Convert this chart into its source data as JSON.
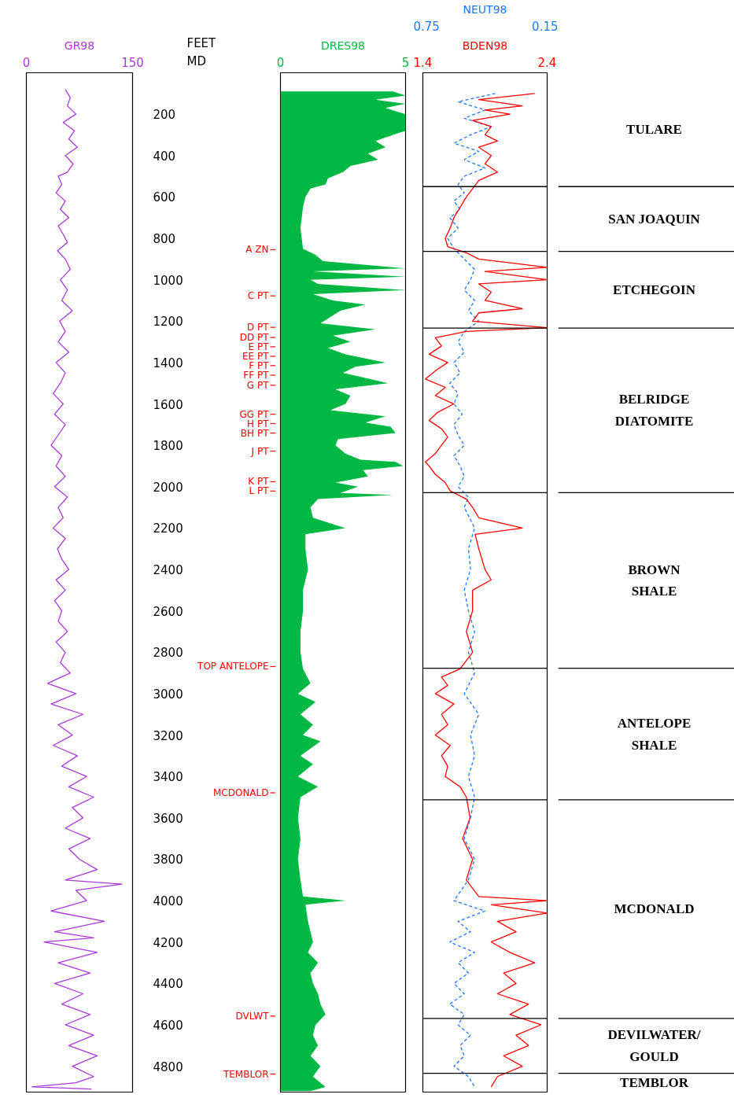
{
  "chart_data": [
    {
      "type": "line",
      "xlabel": "GR98",
      "ylabel": "FEET\nMD",
      "xlim": [
        0,
        150
      ],
      "xticks": [
        0,
        150
      ],
      "ylim": [
        4925,
        0
      ],
      "yticks": [
        200,
        400,
        600,
        800,
        1000,
        1200,
        1400,
        1600,
        1800,
        2000,
        2200,
        2400,
        2600,
        2800,
        3000,
        3200,
        3400,
        3600,
        3800,
        4000,
        4200,
        4400,
        4600,
        4800
      ],
      "series": [
        {
          "color": "#a83ad6",
          "x": [
            55,
            62,
            58,
            70,
            52,
            68,
            60,
            72,
            55,
            66,
            58,
            45,
            50,
            42,
            55,
            48,
            60,
            45,
            52,
            58,
            44,
            55,
            62,
            48,
            58,
            50,
            65,
            47,
            55,
            45,
            60,
            42,
            55,
            48,
            38,
            52,
            40,
            55,
            45,
            35,
            50,
            42,
            55,
            40,
            58,
            45,
            52,
            38,
            55,
            44,
            50,
            60,
            42,
            55,
            40,
            50,
            45,
            58,
            42,
            55,
            48,
            62,
            30,
            70,
            35,
            80,
            45,
            65,
            38,
            72,
            50,
            85,
            60,
            95,
            65,
            80,
            55,
            90,
            60,
            75,
            100,
            55,
            135,
            70,
            85,
            35,
            110,
            40,
            95,
            25,
            100,
            45,
            90,
            40,
            80,
            50,
            90,
            55,
            95,
            60,
            100,
            65,
            95,
            70,
            8,
            92
          ],
          "values": [
            80,
            120,
            160,
            200,
            240,
            280,
            320,
            360,
            400,
            440,
            480,
            500,
            540,
            580,
            620,
            660,
            700,
            740,
            780,
            820,
            860,
            900,
            950,
            1000,
            1050,
            1100,
            1150,
            1200,
            1250,
            1300,
            1350,
            1400,
            1450,
            1500,
            1550,
            1600,
            1650,
            1700,
            1750,
            1800,
            1850,
            1900,
            1950,
            2000,
            2050,
            2100,
            2150,
            2200,
            2250,
            2300,
            2350,
            2400,
            2450,
            2500,
            2550,
            2600,
            2650,
            2700,
            2750,
            2800,
            2850,
            2900,
            2950,
            3000,
            3050,
            3100,
            3150,
            3200,
            3250,
            3300,
            3350,
            3400,
            3450,
            3500,
            3550,
            3600,
            3650,
            3700,
            3750,
            3800,
            3850,
            3900,
            3920,
            3950,
            4000,
            4050,
            4100,
            4150,
            4180,
            4200,
            4250,
            4300,
            4350,
            4400,
            4450,
            4500,
            4550,
            4600,
            4650,
            4700,
            4750,
            4800,
            4850,
            4880,
            4900,
            4910
          ]
        }
      ]
    },
    {
      "type": "area",
      "orientation": "horizontal",
      "xlabel": "DRES98",
      "xlim": [
        0,
        5
      ],
      "xticks": [
        0,
        5
      ],
      "ylim": [
        4925,
        0
      ],
      "tick_labels": "x",
      "series": [
        {
          "color": "#00b843",
          "values": [
            4.5,
            5,
            3.8,
            5,
            4.2,
            5,
            5,
            5,
            4.5,
            3.8,
            4.2,
            3.5,
            3.9,
            2.8,
            2.5,
            1.9,
            1.8,
            1.2,
            1.0,
            0.9,
            0.85,
            0.8,
            0.85,
            0.9,
            1.4,
            1.7,
            5,
            1.3,
            5,
            1.2,
            1.5,
            5,
            1.3,
            2.1,
            3.4,
            2.4,
            2.0,
            1.6,
            3.8,
            2.1,
            2.8,
            1.9,
            2.6,
            4.2,
            3.0,
            2.5,
            3.6,
            4.3,
            2.2,
            2.8,
            2.6,
            2.0,
            4.2,
            3.4,
            4.4,
            4.6,
            2.3,
            2.2,
            2.6,
            3.2,
            4.6,
            4.9,
            3.3,
            3.5,
            2.2,
            3.1,
            2.4,
            4.5,
            1.5,
            1.2,
            1.3,
            2.6,
            1.0,
            1.0,
            1.1,
            0.9,
            0.9,
            0.8,
            0.8,
            0.9,
            1.2,
            0.7,
            1.4,
            0.8,
            1.3,
            0.9,
            1.6,
            0.8,
            1.3,
            0.7,
            1.5,
            0.8,
            0.7,
            0.8,
            0.7,
            0.8,
            0.9,
            2.6,
            1.0,
            1.1,
            1.3,
            1.1,
            1.5,
            1.2,
            1.3,
            1.5,
            1.6,
            1.8,
            1.4,
            1.3,
            1.5,
            1.2,
            1.6,
            1.3,
            1.8,
            1.2
          ],
          "x": [
            90,
            110,
            130,
            150,
            170,
            200,
            240,
            280,
            300,
            330,
            360,
            390,
            420,
            450,
            480,
            510,
            540,
            560,
            600,
            650,
            700,
            750,
            800,
            850,
            880,
            910,
            945,
            960,
            985,
            1000,
            1020,
            1050,
            1070,
            1100,
            1120,
            1150,
            1180,
            1210,
            1240,
            1270,
            1300,
            1330,
            1360,
            1400,
            1420,
            1450,
            1480,
            1500,
            1530,
            1560,
            1600,
            1630,
            1660,
            1690,
            1710,
            1740,
            1770,
            1800,
            1840,
            1870,
            1880,
            1900,
            1920,
            1950,
            1980,
            2000,
            2030,
            2040,
            2060,
            2100,
            2150,
            2200,
            2230,
            2300,
            2400,
            2500,
            2600,
            2700,
            2800,
            2880,
            2950,
            3000,
            3040,
            3100,
            3150,
            3200,
            3230,
            3300,
            3340,
            3400,
            3450,
            3500,
            3600,
            3700,
            3800,
            3900,
            3980,
            4000,
            4020,
            4100,
            4200,
            4250,
            4300,
            4350,
            4400,
            4450,
            4500,
            4550,
            4600,
            4650,
            4700,
            4750,
            4800,
            4850,
            4900,
            4920
          ]
        }
      ],
      "ref_lines": [
        {
          "axis": "y",
          "value": 855,
          "label": "A ZN",
          "color": "#ff0000"
        },
        {
          "axis": "y",
          "value": 1078,
          "label": "C PT",
          "color": "#ff0000"
        },
        {
          "axis": "y",
          "value": 1230,
          "label": "D PT",
          "color": "#ff0000"
        },
        {
          "axis": "y",
          "value": 1279,
          "label": "DD PT",
          "color": "#ff0000"
        },
        {
          "axis": "y",
          "value": 1324,
          "label": "E PT",
          "color": "#ff0000"
        },
        {
          "axis": "y",
          "value": 1370,
          "label": "EE PT",
          "color": "#ff0000"
        },
        {
          "axis": "y",
          "value": 1415,
          "label": "F PT",
          "color": "#ff0000"
        },
        {
          "axis": "y",
          "value": 1461,
          "label": "FF PT",
          "color": "#ff0000"
        },
        {
          "axis": "y",
          "value": 1510,
          "label": "G PT",
          "color": "#ff0000"
        },
        {
          "axis": "y",
          "value": 1650,
          "label": "GG PT",
          "color": "#ff0000"
        },
        {
          "axis": "y",
          "value": 1695,
          "label": "H PT",
          "color": "#ff0000"
        },
        {
          "axis": "y",
          "value": 1741,
          "label": "BH PT",
          "color": "#ff0000"
        },
        {
          "axis": "y",
          "value": 1828,
          "label": "J PT",
          "color": "#ff0000"
        },
        {
          "axis": "y",
          "value": 1976,
          "label": "K PT",
          "color": "#ff0000"
        },
        {
          "axis": "y",
          "value": 2021,
          "label": "L PT",
          "color": "#ff0000"
        },
        {
          "axis": "y",
          "value": 2869,
          "label": "TOP ANTELOPE",
          "color": "#ff0000"
        },
        {
          "axis": "y",
          "value": 3479,
          "label": "MCDONALD",
          "color": "#ff0000"
        },
        {
          "axis": "y",
          "value": 4558,
          "label": "DVLWT",
          "color": "#ff0000"
        },
        {
          "axis": "y",
          "value": 4838,
          "label": "TEMBLOR",
          "color": "#ff0000"
        }
      ]
    },
    {
      "type": "line",
      "xlim": [
        1.4,
        2.4
      ],
      "xticks": [
        1.4,
        2.4
      ],
      "x2lim": [
        0.75,
        0.15
      ],
      "x2ticks": [
        0.75,
        0.15
      ],
      "ylim": [
        4925,
        0
      ],
      "tick_labels": "x",
      "series": [
        {
          "name": "NEUT98",
          "color": "#1f78ff",
          "axis": "x2",
          "line_style": "dashed",
          "x": [
            0.4,
            0.58,
            0.45,
            0.55,
            0.42,
            0.52,
            0.6,
            0.48,
            0.55,
            0.45,
            0.55,
            0.58,
            0.55,
            0.6,
            0.57,
            0.62,
            0.58,
            0.63,
            0.6,
            0.55,
            0.5,
            0.52,
            0.55,
            0.5,
            0.53,
            0.48,
            0.55,
            0.58,
            0.55,
            0.6,
            0.57,
            0.62,
            0.58,
            0.6,
            0.56,
            0.6,
            0.58,
            0.55,
            0.6,
            0.57,
            0.55,
            0.58,
            0.53,
            0.55,
            0.5,
            0.53,
            0.52,
            0.55,
            0.53,
            0.5,
            0.53,
            0.5,
            0.55,
            0.48,
            0.52,
            0.5,
            0.53,
            0.5,
            0.52,
            0.55,
            0.5,
            0.53,
            0.6,
            0.45,
            0.58,
            0.52,
            0.62,
            0.5,
            0.58,
            0.53,
            0.6,
            0.55,
            0.62,
            0.55,
            0.58,
            0.52,
            0.57,
            0.55,
            0.6,
            0.53,
            0.5
          ],
          "values": [
            100,
            140,
            180,
            220,
            260,
            300,
            340,
            380,
            420,
            460,
            500,
            540,
            580,
            620,
            660,
            700,
            750,
            800,
            850,
            900,
            950,
            1000,
            1050,
            1100,
            1150,
            1200,
            1250,
            1300,
            1350,
            1400,
            1450,
            1500,
            1550,
            1600,
            1650,
            1700,
            1750,
            1800,
            1850,
            1900,
            1950,
            2000,
            2050,
            2100,
            2200,
            2300,
            2400,
            2500,
            2600,
            2700,
            2800,
            2900,
            3000,
            3100,
            3200,
            3300,
            3400,
            3500,
            3600,
            3700,
            3800,
            3900,
            4000,
            4050,
            4100,
            4150,
            4200,
            4250,
            4300,
            4350,
            4400,
            4450,
            4500,
            4550,
            4600,
            4650,
            4700,
            4750,
            4800,
            4850,
            4900
          ]
        },
        {
          "name": "BDEN98",
          "color": "#ff0000",
          "line_style": "solid",
          "x": [
            2.3,
            1.85,
            2.2,
            1.9,
            2.1,
            1.8,
            1.95,
            1.9,
            2.0,
            1.85,
            1.95,
            1.9,
            2.0,
            1.85,
            1.8,
            1.75,
            1.7,
            1.65,
            1.62,
            1.58,
            1.6,
            1.75,
            1.85,
            2.4,
            1.9,
            2.4,
            1.85,
            1.95,
            1.9,
            2.2,
            1.85,
            1.8,
            2.4,
            1.75,
            1.5,
            1.55,
            1.45,
            1.6,
            1.5,
            1.42,
            1.58,
            1.5,
            1.65,
            1.52,
            1.45,
            1.55,
            1.6,
            1.55,
            1.5,
            1.42,
            1.45,
            1.5,
            1.58,
            1.62,
            1.75,
            1.8,
            1.85,
            2.2,
            1.82,
            1.85,
            1.9,
            1.95,
            1.8,
            1.8,
            1.75,
            1.8,
            1.7,
            1.55,
            1.6,
            1.5,
            1.65,
            1.55,
            1.6,
            1.5,
            1.62,
            1.55,
            1.6,
            1.58,
            1.7,
            1.75,
            1.78,
            1.72,
            1.8,
            1.75,
            1.85,
            2.4,
            1.95,
            2.4,
            2.0,
            2.15,
            1.95,
            2.1,
            2.3,
            2.05,
            2.15,
            2.0,
            2.25,
            2.1,
            2.35,
            2.15,
            2.25,
            2.05,
            2.2,
            2.0,
            1.95
          ],
          "values": [
            100,
            130,
            160,
            180,
            200,
            230,
            260,
            300,
            330,
            360,
            400,
            440,
            480,
            520,
            560,
            600,
            650,
            700,
            750,
            800,
            840,
            870,
            900,
            940,
            960,
            1000,
            1020,
            1060,
            1100,
            1140,
            1160,
            1200,
            1232,
            1250,
            1280,
            1320,
            1360,
            1400,
            1440,
            1480,
            1520,
            1560,
            1600,
            1640,
            1680,
            1720,
            1760,
            1800,
            1840,
            1880,
            1900,
            1940,
            1980,
            2020,
            2060,
            2100,
            2150,
            2200,
            2230,
            2300,
            2400,
            2450,
            2500,
            2600,
            2700,
            2800,
            2880,
            2920,
            2960,
            3000,
            3050,
            3100,
            3150,
            3200,
            3250,
            3300,
            3350,
            3400,
            3450,
            3500,
            3600,
            3700,
            3800,
            3900,
            3980,
            4000,
            4020,
            4060,
            4100,
            4150,
            4200,
            4250,
            4300,
            4350,
            4400,
            4450,
            4500,
            4550,
            4600,
            4650,
            4700,
            4750,
            4800,
            4850,
            4900
          ]
        }
      ],
      "ref_lines": [
        {
          "axis": "y",
          "value": 550,
          "color": "#000000"
        },
        {
          "axis": "y",
          "value": 863,
          "color": "#000000"
        },
        {
          "axis": "y",
          "value": 1234,
          "color": "#000000"
        },
        {
          "axis": "y",
          "value": 2029,
          "color": "#000000"
        },
        {
          "axis": "y",
          "value": 2877,
          "color": "#000000"
        },
        {
          "axis": "y",
          "value": 3513,
          "color": "#000000"
        },
        {
          "axis": "y",
          "value": 4569,
          "color": "#000000"
        },
        {
          "axis": "y",
          "value": 4834,
          "color": "#000000"
        }
      ],
      "annotations": [
        "TULARE",
        "SAN JOAQUIN",
        "ETCHEGOIN",
        "BELRIDGE\nDIATOMITE",
        "BROWN\nSHALE",
        "ANTELOPE\nSHALE",
        "MCDONALD",
        "DEVILWATER/\nGOULD",
        "TEMBLOR"
      ]
    }
  ]
}
